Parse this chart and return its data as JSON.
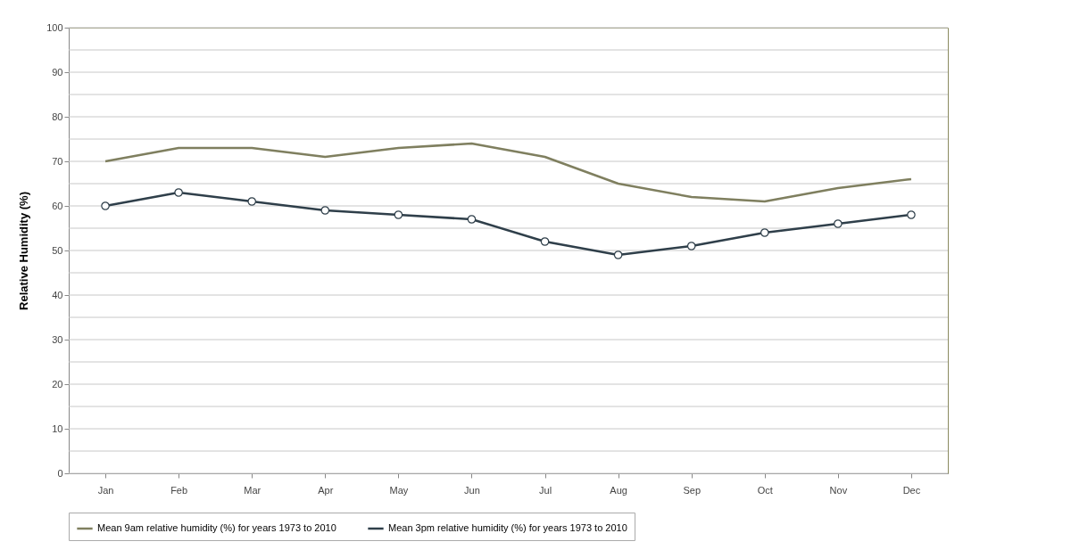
{
  "chart_data": {
    "type": "line",
    "ylabel": "Relative Humidity  (%)",
    "categories": [
      "Jan",
      "Feb",
      "Mar",
      "Apr",
      "May",
      "Jun",
      "Jul",
      "Aug",
      "Sep",
      "Oct",
      "Nov",
      "Dec"
    ],
    "series": [
      {
        "name": "Mean 9am relative humidity (%) for years 1973 to 2010",
        "color": "#7f7f5f",
        "marker": "none",
        "values": [
          70,
          73,
          73,
          71,
          73,
          74,
          71,
          65,
          62,
          61,
          64,
          66
        ]
      },
      {
        "name": "Mean 3pm relative humidity (%) for years 1973 to 2010",
        "color": "#2f3f4a",
        "marker": "circle",
        "values": [
          60,
          63,
          61,
          59,
          58,
          57,
          52,
          49,
          51,
          54,
          56,
          58
        ]
      }
    ],
    "ylim": [
      0,
      100
    ],
    "yticks": [
      0,
      {
        "value": 5,
        "label": null
      },
      10,
      {
        "value": 15,
        "label": null
      },
      20,
      {
        "value": 25,
        "label": null
      },
      30,
      {
        "value": 35,
        "label": null
      },
      40,
      {
        "value": 45,
        "label": null
      },
      50,
      {
        "value": 55,
        "label": null
      },
      60,
      {
        "value": 65,
        "label": null
      },
      70,
      {
        "value": 75,
        "label": null
      },
      80,
      {
        "value": 85,
        "label": null
      },
      90,
      {
        "value": 95,
        "label": null
      },
      100
    ],
    "grid": "y",
    "legend": "bottom",
    "line_style": "solid"
  }
}
